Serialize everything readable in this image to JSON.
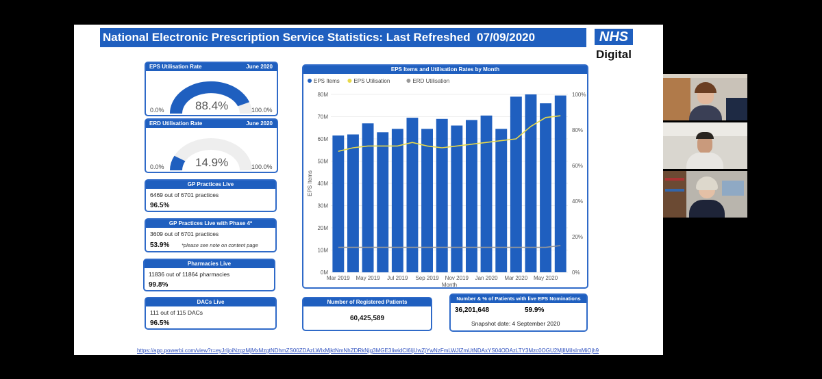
{
  "header": {
    "title": "National Electronic Prescription Service Statistics: Last Refreshed",
    "date": "07/09/2020"
  },
  "logo": {
    "nhs": "NHS",
    "digital": "Digital"
  },
  "colors": {
    "brand": "#1f5fbf",
    "accent_line": "#e8d94a",
    "erd_line": "#999999",
    "bar": "#1f5fbf"
  },
  "eps_gauge": {
    "label": "EPS Utilisation Rate",
    "period": "June 2020",
    "value_text": "88.4%",
    "value": 0.884,
    "min": "0.0%",
    "max": "100.0%"
  },
  "erd_gauge": {
    "label": "ERD Utilisation Rate",
    "period": "June 2020",
    "value_text": "14.9%",
    "value": 0.149,
    "min": "0.0%",
    "max": "100.0%"
  },
  "gp_live": {
    "title": "GP Practices Live",
    "detail": "6469 out of 6701 practices",
    "pct": "96.5%"
  },
  "gp_phase4": {
    "title": "GP Practices Live with Phase 4*",
    "detail": "3609 out of 6701 practices",
    "pct": "53.9%",
    "note": "*please see note on content page"
  },
  "pharmacies": {
    "title": "Pharmacies Live",
    "detail": "11836 out of 11864 pharmacies",
    "pct": "99.8%"
  },
  "dacs": {
    "title": "DACs Live",
    "detail": "111 out of 115 DACs",
    "pct": "96.5%"
  },
  "registered": {
    "title": "Number of Registered Patients",
    "value": "60,425,589"
  },
  "nominations": {
    "title": "Number & % of Patients with live EPS Nominations",
    "count": "36,201,648",
    "pct": "59.9%",
    "snapshot": "Snapshot date: 4 September 2020"
  },
  "url": "https://app.powerbi.com/view?r=eyJrIjoiNzgzMjMxMzgtNDhmZS00ZDAzLWIxMjktNmNhZDRkNjg3MGE3IiwidCI6IjUwZjYwNzFmLWJlZmUtNDAxYS04ODAzLTY3Mzc0OGU2MjllMiIsImMiOjh9",
  "chart_data": {
    "type": "bar",
    "title": "EPS Items and Utilisation Rates by Month",
    "xlabel": "Month",
    "ylabel": "EPS Items",
    "legend": [
      "EPS Items",
      "EPS Utilisation",
      "ERD Utilisation"
    ],
    "legend_position": "top-left",
    "x_tick_labels": [
      "Mar 2019",
      "May 2019",
      "Jul 2019",
      "Sep 2019",
      "Nov 2019",
      "Jan 2020",
      "Mar 2020",
      "May 2020"
    ],
    "y_ticks": [
      "0M",
      "10M",
      "20M",
      "30M",
      "40M",
      "50M",
      "60M",
      "70M",
      "80M"
    ],
    "y2_ticks": [
      "0%",
      "20%",
      "40%",
      "60%",
      "80%",
      "100%"
    ],
    "ylim": [
      0,
      80000000
    ],
    "y2lim": [
      0,
      100
    ],
    "categories": [
      "Mar 2019",
      "Apr 2019",
      "May 2019",
      "Jun 2019",
      "Jul 2019",
      "Aug 2019",
      "Sep 2019",
      "Oct 2019",
      "Nov 2019",
      "Dec 2019",
      "Jan 2020",
      "Feb 2020",
      "Mar 2020",
      "Apr 2020",
      "May 2020",
      "Jun 2020"
    ],
    "series": [
      {
        "name": "EPS Items",
        "type": "bar",
        "axis": "left",
        "values": [
          61500000,
          62000000,
          67000000,
          63000000,
          64500000,
          69500000,
          64500000,
          69000000,
          66000000,
          68500000,
          70500000,
          64500000,
          79000000,
          80000000,
          76000000,
          79500000
        ]
      },
      {
        "name": "EPS Utilisation",
        "type": "line",
        "axis": "right",
        "values": [
          68,
          70,
          71,
          71,
          71,
          73,
          71,
          70,
          71,
          72,
          73,
          74,
          75,
          82,
          87,
          88
        ]
      },
      {
        "name": "ERD Utilisation",
        "type": "line",
        "axis": "right",
        "values": [
          14,
          14,
          14,
          14,
          14,
          14,
          14,
          14,
          14,
          14,
          14,
          14,
          14,
          14,
          14,
          15
        ]
      }
    ]
  }
}
